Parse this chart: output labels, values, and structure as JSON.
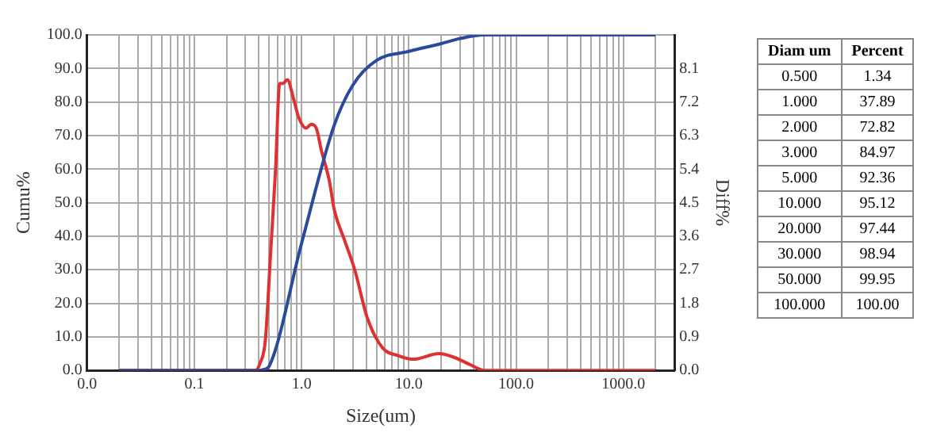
{
  "chart_data": [
    {
      "type": "line",
      "xlabel": "Size(um)",
      "ylabel": "Cumu%",
      "y2label": "Diff%",
      "log": "x",
      "grid": true,
      "xlim": [
        0.01,
        3000
      ],
      "xticks": [
        {
          "value": 0.01,
          "label": "0.0"
        },
        {
          "value": 0.02,
          "label": null
        },
        {
          "value": 0.03,
          "label": null
        },
        {
          "value": 0.04,
          "label": null
        },
        {
          "value": 0.05,
          "label": null
        },
        {
          "value": 0.06,
          "label": null
        },
        {
          "value": 0.07,
          "label": null
        },
        {
          "value": 0.08,
          "label": null
        },
        {
          "value": 0.09,
          "label": null
        },
        {
          "value": 0.1,
          "label": "0.1"
        },
        {
          "value": 0.2,
          "label": null
        },
        {
          "value": 0.3,
          "label": null
        },
        {
          "value": 0.4,
          "label": null
        },
        {
          "value": 0.5,
          "label": null
        },
        {
          "value": 0.6,
          "label": null
        },
        {
          "value": 0.7,
          "label": null
        },
        {
          "value": 0.8,
          "label": null
        },
        {
          "value": 0.9,
          "label": null
        },
        {
          "value": 1,
          "label": "1.0"
        },
        {
          "value": 2,
          "label": null
        },
        {
          "value": 3,
          "label": null
        },
        {
          "value": 4,
          "label": null
        },
        {
          "value": 5,
          "label": null
        },
        {
          "value": 6,
          "label": null
        },
        {
          "value": 7,
          "label": null
        },
        {
          "value": 8,
          "label": null
        },
        {
          "value": 9,
          "label": null
        },
        {
          "value": 10,
          "label": "10.0"
        },
        {
          "value": 20,
          "label": null
        },
        {
          "value": 30,
          "label": null
        },
        {
          "value": 40,
          "label": null
        },
        {
          "value": 50,
          "label": null
        },
        {
          "value": 60,
          "label": null
        },
        {
          "value": 70,
          "label": null
        },
        {
          "value": 80,
          "label": null
        },
        {
          "value": 90,
          "label": null
        },
        {
          "value": 100,
          "label": "100.0"
        },
        {
          "value": 200,
          "label": null
        },
        {
          "value": 300,
          "label": null
        },
        {
          "value": 400,
          "label": null
        },
        {
          "value": 500,
          "label": null
        },
        {
          "value": 600,
          "label": null
        },
        {
          "value": 700,
          "label": null
        },
        {
          "value": 800,
          "label": null
        },
        {
          "value": 900,
          "label": null
        },
        {
          "value": 1000,
          "label": "1000.0"
        },
        {
          "value": 2000,
          "label": null
        }
      ],
      "ylim": [
        0,
        100
      ],
      "yticks": [
        {
          "value": 0,
          "label": "0.0"
        },
        {
          "value": 10,
          "label": "10.0"
        },
        {
          "value": 20,
          "label": "20.0"
        },
        {
          "value": 30,
          "label": "30.0"
        },
        {
          "value": 40,
          "label": "40.0"
        },
        {
          "value": 50,
          "label": "50.0"
        },
        {
          "value": 60,
          "label": "60.0"
        },
        {
          "value": 70,
          "label": "70.0"
        },
        {
          "value": 80,
          "label": "80.0"
        },
        {
          "value": 90,
          "label": "90.0"
        },
        {
          "value": 100,
          "label": "100.0"
        }
      ],
      "y2lim": [
        0,
        9
      ],
      "y2ticks": [
        {
          "value": 0,
          "label": "0.0"
        },
        {
          "value": 0.9,
          "label": "0.9"
        },
        {
          "value": 1.8,
          "label": "1.8"
        },
        {
          "value": 2.7,
          "label": "2.7"
        },
        {
          "value": 3.6,
          "label": "3.6"
        },
        {
          "value": 4.5,
          "label": "4.5"
        },
        {
          "value": 5.4,
          "label": "5.4"
        },
        {
          "value": 6.3,
          "label": "6.3"
        },
        {
          "value": 7.2,
          "label": "7.2"
        },
        {
          "value": 8.1,
          "label": "8.1"
        }
      ],
      "series": [
        {
          "color": "#2b4a9e",
          "x": [
            0.02,
            0.4,
            0.45,
            0.5,
            1,
            2,
            3,
            5,
            10,
            20,
            30,
            50,
            100,
            2000
          ],
          "values": [
            0,
            0,
            0.3,
            1.3,
            37.9,
            72.8,
            85,
            92.4,
            95.1,
            97.4,
            98.9,
            100,
            100,
            100
          ]
        },
        {
          "color": "#e03131",
          "axis": "y2",
          "x": [
            0.02,
            0.369,
            0.411,
            0.459,
            0.513,
            0.572,
            0.624,
            0.674,
            0.736,
            0.839,
            0.936,
            1.1,
            1.23,
            1.37,
            1.53,
            1.81,
            2.02,
            2.51,
            3.13,
            4.11,
            5.71,
            7.9,
            11,
            19.1,
            26.5,
            36.9,
            51,
            2000
          ],
          "values": [
            0,
            0,
            0.2,
            0.8,
            3.1,
            5.4,
            7.7,
            7.7,
            7.8,
            7.3,
            6.8,
            6.5,
            6.6,
            6.5,
            5.9,
            5.1,
            4.3,
            3.5,
            2.7,
            1.4,
            0.6,
            0.4,
            0.3,
            0.45,
            0.35,
            0.16,
            0,
            0
          ]
        }
      ]
    },
    {
      "type": "other",
      "xlabel": "Diam um",
      "ylabel": "Percent",
      "categories": [
        "0.500",
        "1.000",
        "2.000",
        "3.000",
        "5.000",
        "10.000",
        "20.000",
        "30.000",
        "50.000",
        "100.000"
      ],
      "value_labels": [
        "1.34",
        "37.89",
        "72.82",
        "84.97",
        "92.36",
        "95.12",
        "97.44",
        "98.94",
        "99.95",
        "100.00"
      ]
    }
  ]
}
